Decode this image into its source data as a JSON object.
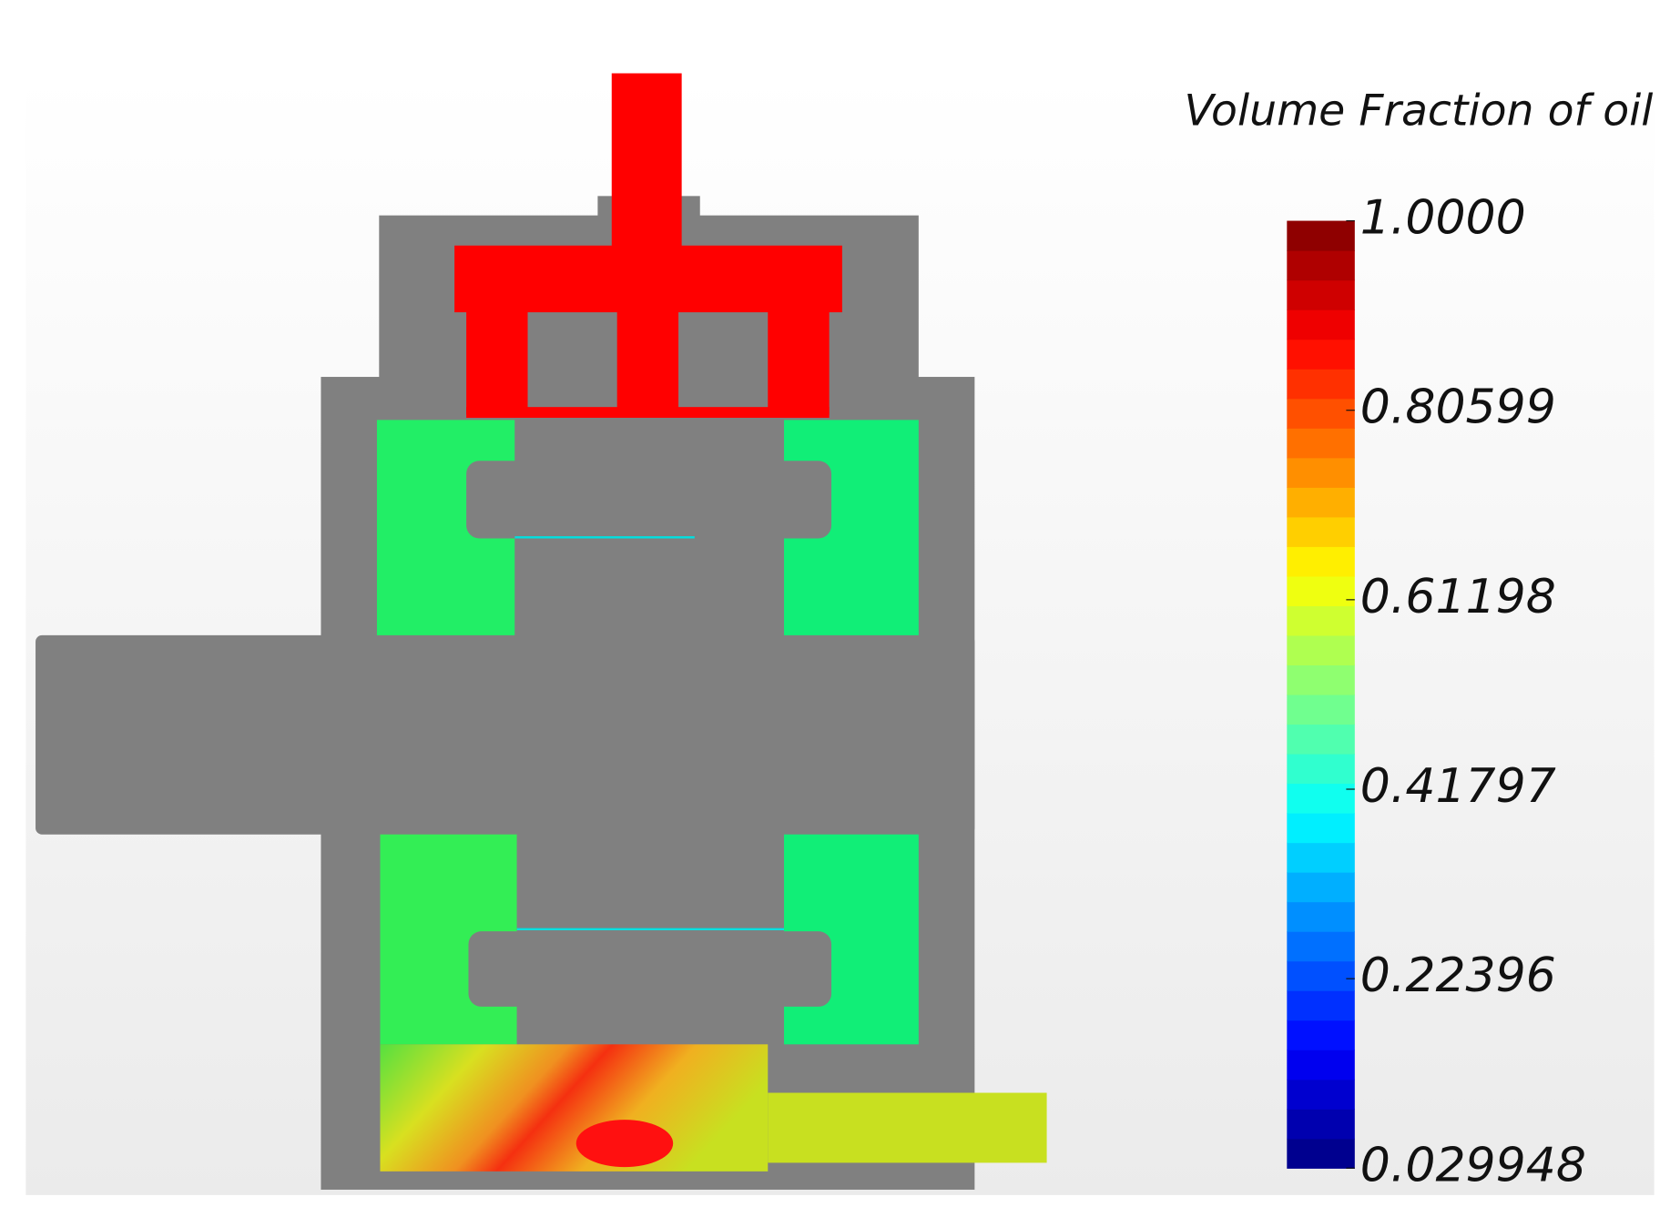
{
  "chart_data": {
    "type": "colorbar",
    "title": "Volume Fraction of oil",
    "clim": [
      0.029948,
      1
    ],
    "cticks": [
      {
        "value": 1,
        "label": "1.0000"
      },
      0.80599,
      0.61198,
      0.41797,
      0.22396,
      0.029948
    ]
  }
}
